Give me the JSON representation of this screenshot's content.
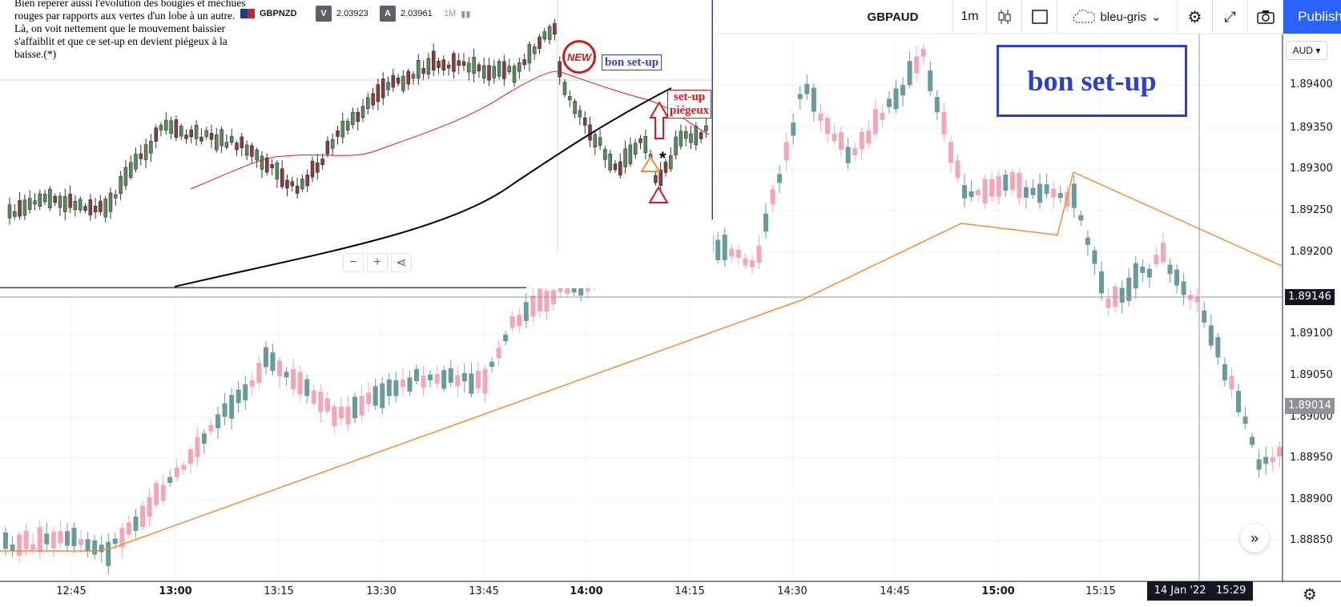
{
  "toolbar": {
    "symbol": "GBPAUD",
    "interval": "1m",
    "theme_name": "bleu-gris",
    "publish_label": "Publish",
    "icons": [
      "candles-icon",
      "rectangle-icon",
      "cloud-icon",
      "gear-icon",
      "fullscreen-icon",
      "camera-icon"
    ]
  },
  "price_axis": {
    "currency": "AUD",
    "ticks": [
      "1.89400",
      "1.89350",
      "1.89300",
      "1.89250",
      "1.89200",
      "1.89100",
      "1.89050",
      "1.89000",
      "1.88950",
      "1.88900",
      "1.88850"
    ],
    "crosshair_price": "1.89146",
    "last_price": "1.89014"
  },
  "time_axis": {
    "ticks": [
      {
        "label": "12:45",
        "bold": false
      },
      {
        "label": "13:00",
        "bold": true
      },
      {
        "label": "13:15",
        "bold": false
      },
      {
        "label": "13:30",
        "bold": false
      },
      {
        "label": "13:45",
        "bold": false
      },
      {
        "label": "14:00",
        "bold": true
      },
      {
        "label": "14:15",
        "bold": false
      },
      {
        "label": "14:30",
        "bold": false
      },
      {
        "label": "14:45",
        "bold": false
      },
      {
        "label": "15:00",
        "bold": true
      },
      {
        "label": "15:15",
        "bold": false
      }
    ],
    "crosshair_date": "14 Jan '22",
    "crosshair_time": "15:29"
  },
  "inset": {
    "note": "Bien repérer aussi l'évolution des bougies et méchues rouges par rapports aux vertes d'un lobe à un autre. Là, on voit nettement que le mouvement baissier s'affaiblit et que ce set-up en devient piégeux à la baisse.(*)",
    "symbol": "GBPNZD",
    "bid_label": "V",
    "bid": "2.03923",
    "ask_label": "A",
    "ask": "2.03961",
    "interval": "1M",
    "zoom_out": "−",
    "zoom_in": "+",
    "asterisk": "*"
  },
  "annotations": {
    "big_label": "bon set-up",
    "small_label": "bon set-up",
    "trap_line1": "set-up",
    "trap_line2": "piégeux",
    "new_badge": "NEW"
  },
  "colors": {
    "up": "#6a9a9c",
    "down": "#f4a6b6",
    "ma": "#f48a31",
    "blue": "#2f3fc8",
    "red": "#e0141b",
    "accent": "#2962ff"
  }
}
